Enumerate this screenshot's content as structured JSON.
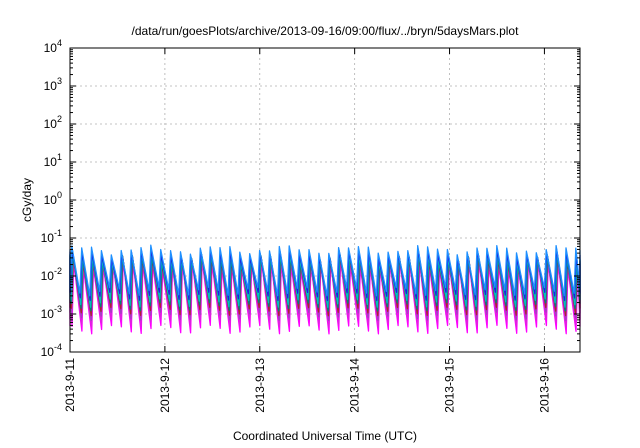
{
  "chart_data": {
    "type": "line",
    "title": "/data/run/goesPlots/archive/2013-09-16/09:00/flux/../bryn/5daysMars.plot",
    "xlabel": "Coordinated Universal Time (UTC)",
    "ylabel": "cGy/day",
    "x_scale": "time",
    "y_scale": "log",
    "xlim": [
      "2013-09-11T00:00",
      "2013-09-16T09:00"
    ],
    "ylim": [
      0.0001,
      10000
    ],
    "x_ticks": [
      {
        "value": "2013-09-11T00:00",
        "label": "2013-9-11"
      },
      {
        "value": "2013-09-12T00:00",
        "label": "2013-9-12"
      },
      {
        "value": "2013-09-13T00:00",
        "label": "2013-9-13"
      },
      {
        "value": "2013-09-14T00:00",
        "label": "2013-9-14"
      },
      {
        "value": "2013-09-15T00:00",
        "label": "2013-9-15"
      },
      {
        "value": "2013-09-16T00:00",
        "label": "2013-9-16"
      }
    ],
    "y_ticks": [
      {
        "value": 0.0001,
        "base": "10",
        "exp": "-4"
      },
      {
        "value": 0.001,
        "base": "10",
        "exp": "-3"
      },
      {
        "value": 0.01,
        "base": "10",
        "exp": "-2"
      },
      {
        "value": 0.1,
        "base": "10",
        "exp": "-1"
      },
      {
        "value": 1,
        "base": "10",
        "exp": "0"
      },
      {
        "value": 10,
        "base": "10",
        "exp": "1"
      },
      {
        "value": 100,
        "base": "10",
        "exp": "2"
      },
      {
        "value": 1000,
        "base": "10",
        "exp": "3"
      },
      {
        "value": 10000,
        "base": "10",
        "exp": "4"
      }
    ],
    "grid": true,
    "legend": "none",
    "pattern": {
      "description": "sawtooth repeating every ~2.5 hours: sharp rise to peak then decay to trough",
      "period_hours": 2.5,
      "time_start": "2013-09-11T00:00",
      "time_end": "2013-09-16T09:00"
    },
    "series": [
      {
        "color": "#ff00ff",
        "peak": 0.02,
        "trough": 0.0004,
        "phase_hours": 0.5
      },
      {
        "color": "#e020e0",
        "peak": 0.022,
        "trough": 0.0006,
        "phase_hours": 0.45
      },
      {
        "color": "#a040c0",
        "peak": 0.025,
        "trough": 0.0009,
        "phase_hours": 0.4
      },
      {
        "color": "#b02030",
        "peak": 0.028,
        "trough": 0.0012,
        "phase_hours": 0.35
      },
      {
        "color": "#008080",
        "peak": 0.03,
        "trough": 0.0016,
        "phase_hours": 0.3
      },
      {
        "color": "#00c0c0",
        "peak": 0.033,
        "trough": 0.002,
        "phase_hours": 0.2
      },
      {
        "color": "#2020e0",
        "peak": 0.04,
        "trough": 0.003,
        "phase_hours": 0.1
      },
      {
        "color": "#1e90ff",
        "peak": 0.05,
        "trough": 0.004,
        "phase_hours": 0.0
      }
    ]
  }
}
